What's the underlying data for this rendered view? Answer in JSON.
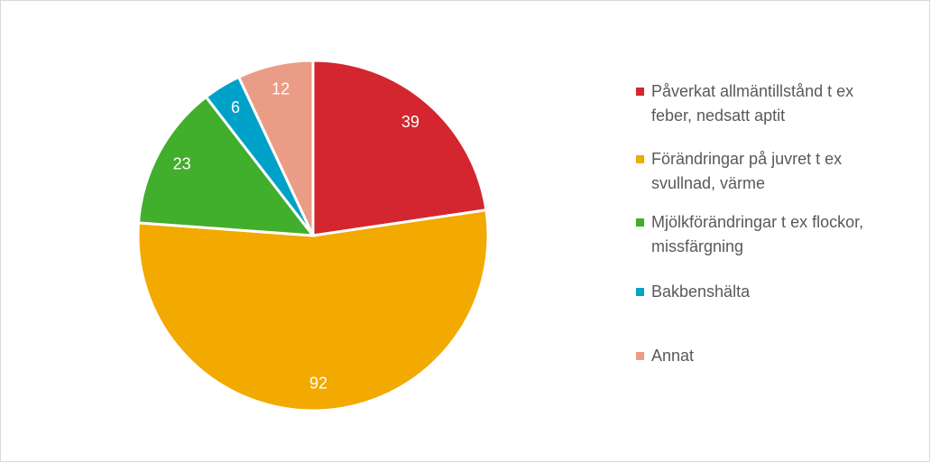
{
  "chart_data": {
    "type": "pie",
    "categories": [
      "Påverkat allmäntillstånd t ex feber, nedsatt aptit",
      "Förändringar på juvret t ex svullnad, värme",
      "Mjölkförändringar t ex flockor, missfärgning",
      "Bakbenshälta",
      "Annat"
    ],
    "values": [
      39,
      92,
      23,
      6,
      12
    ],
    "colors": [
      "#d3262f",
      "#f2a900",
      "#41ae2c",
      "#00a1c8",
      "#eb9c87"
    ],
    "legend": "right"
  }
}
